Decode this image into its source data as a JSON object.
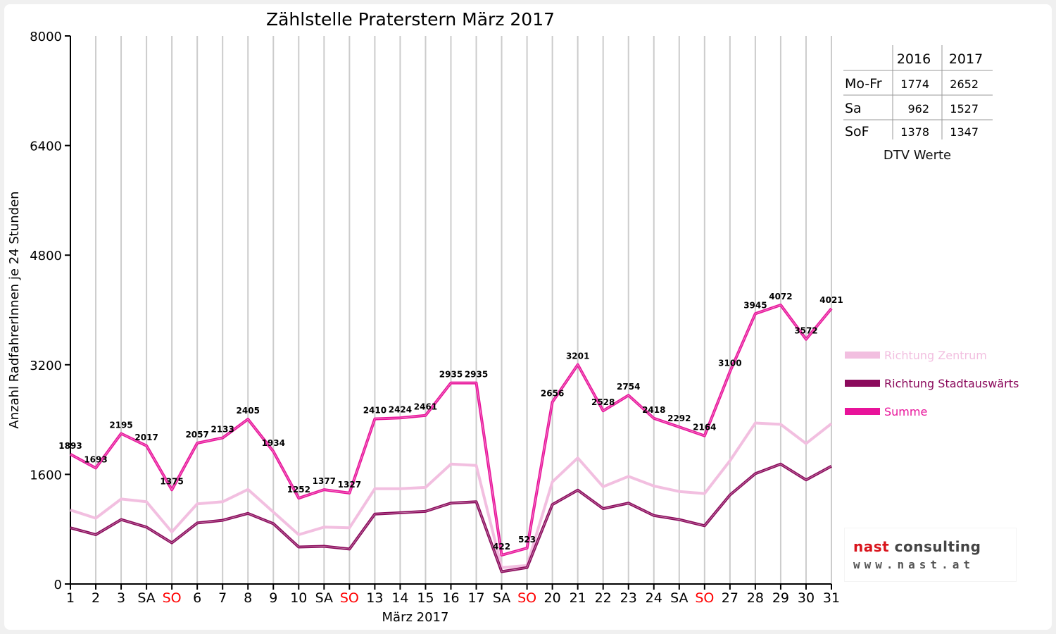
{
  "colors": {
    "zentrum": "#f2bfe0",
    "stadtauswaerts": "#8b0a5c",
    "summe": "#e8139a",
    "weekend_label": "#ff0000",
    "grid": "#cccccc",
    "axis": "#000000"
  },
  "chart_data": {
    "type": "line",
    "title": "Zählstelle Praterstern März 2017",
    "xlabel": "März 2017",
    "ylabel": "Anzahl RadfahrerInnen je 24 Stunden",
    "ylim": [
      0,
      8000
    ],
    "y_ticks": [
      "0",
      "1600",
      "3200",
      "4800",
      "6400",
      "8000"
    ],
    "y_tick_values": [
      0,
      1600,
      3200,
      4800,
      6400,
      8000
    ],
    "grid": "vertical",
    "legend_position": "right",
    "categories": [
      "1",
      "2",
      "3",
      "SA",
      "SO",
      "6",
      "7",
      "8",
      "9",
      "10",
      "SA",
      "SO",
      "13",
      "14",
      "15",
      "16",
      "17",
      "SA",
      "SO",
      "20",
      "21",
      "22",
      "23",
      "24",
      "SA",
      "SO",
      "27",
      "28",
      "29",
      "30",
      "31"
    ],
    "weekend_categories": [
      "SO"
    ],
    "series": [
      {
        "name": "Richtung Zentrum",
        "color_key": "zentrum",
        "values": [
          1080,
          960,
          1240,
          1200,
          760,
          1170,
          1200,
          1380,
          1050,
          720,
          830,
          820,
          1390,
          1390,
          1410,
          1750,
          1730,
          240,
          270,
          1490,
          1840,
          1420,
          1570,
          1430,
          1350,
          1320,
          1800,
          2350,
          2330,
          2050,
          2340
        ]
      },
      {
        "name": "Richtung Stadtauswärts",
        "color_key": "stadtauswaerts",
        "values": [
          820,
          720,
          940,
          830,
          600,
          890,
          930,
          1030,
          880,
          540,
          550,
          510,
          1020,
          1040,
          1060,
          1180,
          1200,
          180,
          240,
          1160,
          1370,
          1100,
          1180,
          1000,
          940,
          850,
          1300,
          1610,
          1750,
          1520,
          1720
        ]
      },
      {
        "name": "Summe",
        "color_key": "summe",
        "values": [
          1893,
          1693,
          2195,
          2017,
          1375,
          2057,
          2133,
          2405,
          1934,
          1252,
          1377,
          1327,
          2410,
          2424,
          2461,
          2935,
          2935,
          422,
          523,
          2656,
          3201,
          2528,
          2754,
          2418,
          2292,
          2164,
          3100,
          3945,
          4072,
          3572,
          4021
        ]
      }
    ],
    "data_labels": [
      "1893",
      "1693",
      "2195",
      "2017",
      "1375",
      "2057",
      "2133",
      "2405",
      "1934",
      "1252",
      "1377",
      "1327",
      "2410",
      "2424",
      "2461",
      "2935",
      "2935",
      "422",
      "523",
      "2656",
      "3201",
      "2528",
      "2754",
      "2418",
      "2292",
      "2164",
      "3100",
      "3945",
      "4072",
      "3572",
      "4021"
    ]
  },
  "dtv": {
    "header": [
      "",
      "2016",
      "2017"
    ],
    "rows": [
      {
        "label": "Mo-Fr",
        "v2016": "1774",
        "v2017": "2652"
      },
      {
        "label": "Sa",
        "v2016": "962",
        "v2017": "1527"
      },
      {
        "label": "SoF",
        "v2016": "1378",
        "v2017": "1347"
      }
    ],
    "caption": "DTV Werte"
  },
  "logo": {
    "word1": "nast",
    "word2": "consulting",
    "url": "www.nast.at",
    "color1": "#d9141c",
    "color2": "#444444"
  }
}
